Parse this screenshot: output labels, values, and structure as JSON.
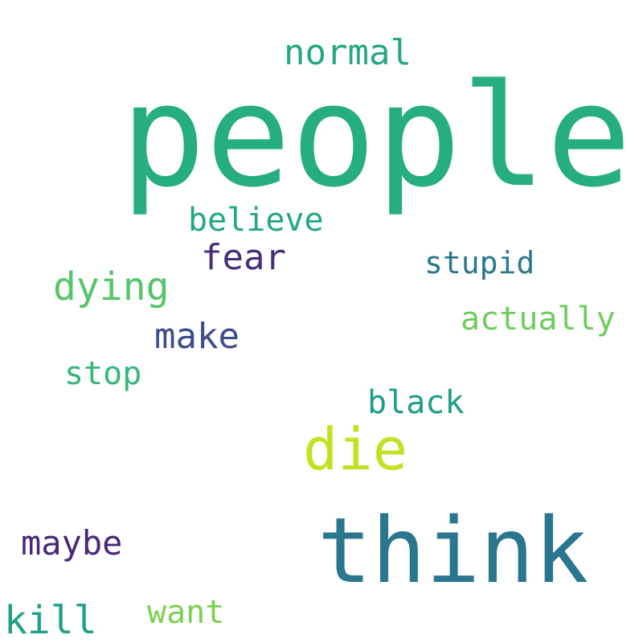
{
  "word_cloud": {
    "words": [
      {
        "text": "people",
        "color": "#26ad80"
      },
      {
        "text": "think",
        "color": "#2a768e"
      },
      {
        "text": "die",
        "color": "#c5e021"
      },
      {
        "text": "normal",
        "color": "#25a884"
      },
      {
        "text": "believe",
        "color": "#22a785"
      },
      {
        "text": "fear",
        "color": "#472d7b"
      },
      {
        "text": "dying",
        "color": "#54c568"
      },
      {
        "text": "stupid",
        "color": "#2a788e"
      },
      {
        "text": "actually",
        "color": "#6ccd5a"
      },
      {
        "text": "make",
        "color": "#3e4c8a"
      },
      {
        "text": "stop",
        "color": "#35b779"
      },
      {
        "text": "black",
        "color": "#1f9e89"
      },
      {
        "text": "maybe",
        "color": "#482878"
      },
      {
        "text": "kill",
        "color": "#1fa188"
      },
      {
        "text": "want",
        "color": "#7ad151"
      }
    ]
  }
}
